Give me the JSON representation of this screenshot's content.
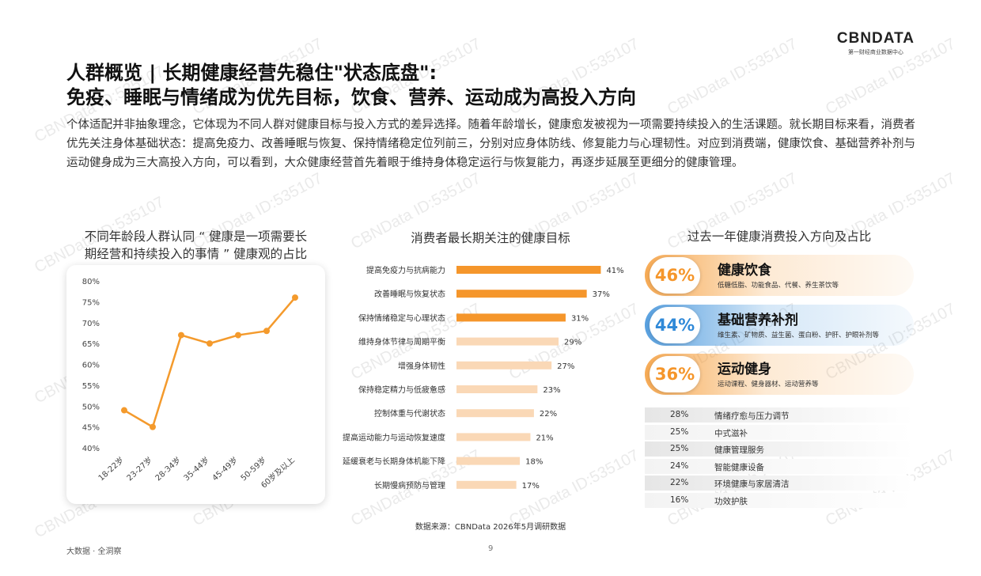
{
  "logo": {
    "mark": "CBNDATA",
    "subtitle": "第一财经商业数据中心"
  },
  "title": {
    "line1": "人群概览 | 长期健康经营先稳住\"状态底盘\":",
    "line2": "免疫、睡眠与情绪成为优先目标，饮食、营养、运动成为高投入方向"
  },
  "intro": "个体适配并非抽象理念，它体现为不同人群对健康目标与投入方式的差异选择。随着年龄增长，健康愈发被视为一项需要持续投入的生活课题。就长期目标来看，消费者优先关注身体基础状态：提高免疫力、改善睡眠与恢复、保持情绪稳定位列前三，分别对应身体防线、修复能力与心理韧性。对应到消费端，健康饮食、基础营养补剂与运动健身成为三大高投入方向，可以看到，大众健康经营首先着眼于维持身体稳定运行与恢复能力，再逐步延展至更细分的健康管理。",
  "watermark": "CBNData ID:535107",
  "colors": {
    "orange": "#f5962b",
    "light_orange": "#fad8b6",
    "blue": "#2f89d8",
    "line": "#f49a2c"
  },
  "line_section": {
    "title_line1": "不同年龄段人群认同 “ 健康是一项需要长",
    "title_line2": "期经营和持续投入的事情 ” 健康观的占比"
  },
  "bar_section": {
    "title": "消费者最长期关注的健康目标"
  },
  "invest_section": {
    "title": "过去一年健康消费投入方向及占比",
    "top": [
      {
        "pct": "46%",
        "name": "健康饮食",
        "desc": "低糖低脂、功能食品、代餐、养生茶饮等",
        "value": 46,
        "color": "#f5962b"
      },
      {
        "pct": "44%",
        "name": "基础营养补剂",
        "desc": "维生素、矿物质、益生菌、蛋白粉、护肝、护眼补剂等",
        "value": 44,
        "color": "#2f89d8"
      },
      {
        "pct": "36%",
        "name": "运动健身",
        "desc": "运动课程、健身器材、运动营养等",
        "value": 36,
        "color": "#f5962b"
      }
    ],
    "others": [
      {
        "pct": "28%",
        "label": "情绪疗愈与压力调节",
        "value": 28
      },
      {
        "pct": "25%",
        "label": "中式滋补",
        "value": 25
      },
      {
        "pct": "25%",
        "label": "健康管理服务",
        "value": 25
      },
      {
        "pct": "24%",
        "label": "智能健康设备",
        "value": 24
      },
      {
        "pct": "22%",
        "label": "环境健康与家居清洁",
        "value": 22
      },
      {
        "pct": "16%",
        "label": "功效护肤",
        "value": 16
      }
    ]
  },
  "source": "数据来源：CBNData 2026年5月调研数据",
  "footer": "大数据 · 全洞察",
  "page_number": "9",
  "chart_data": [
    {
      "type": "line",
      "title": "不同年龄段人群认同 “ 健康是一项需要长期经营和持续投入的事情 ” 健康观的占比",
      "categories": [
        "18-22岁",
        "23-27岁",
        "28-34岁",
        "35-44岁",
        "45-49岁",
        "50-59岁",
        "60岁及以上"
      ],
      "values": [
        49,
        45,
        67,
        65,
        67,
        68,
        76
      ],
      "ylim": [
        40,
        80
      ],
      "yticks": [
        40,
        45,
        50,
        55,
        60,
        65,
        70,
        75,
        80
      ],
      "ytick_labels": [
        "40%",
        "45%",
        "50%",
        "55%",
        "60%",
        "65%",
        "70%",
        "75%",
        "80%"
      ],
      "grid": false
    },
    {
      "type": "bar",
      "orientation": "horizontal",
      "title": "消费者最长期关注的健康目标",
      "categories": [
        "提高免疫力与抗病能力",
        "改善睡眠与恢复状态",
        "保持情绪稳定与心理状态",
        "维持身体节律与周期平衡",
        "增强身体韧性",
        "保持稳定精力与低疲惫感",
        "控制体重与代谢状态",
        "提高运动能力与运动恢复速度",
        "延缓衰老与长期身体机能下降",
        "长期慢病预防与管理"
      ],
      "values": [
        41,
        37,
        31,
        29,
        27,
        23,
        22,
        21,
        18,
        17
      ],
      "labels": [
        "41%",
        "37%",
        "31%",
        "29%",
        "27%",
        "23%",
        "22%",
        "21%",
        "18%",
        "17%"
      ],
      "highlight_top": 3
    }
  ]
}
